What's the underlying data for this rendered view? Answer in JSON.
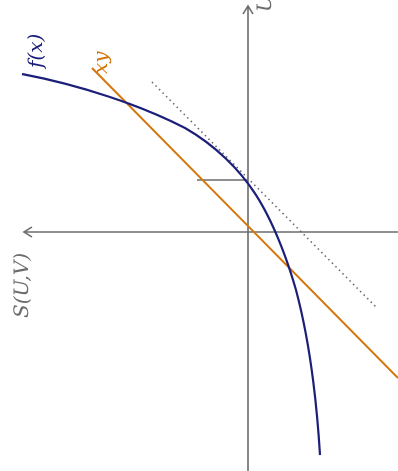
{
  "labels": {
    "f_curve": "f(x)",
    "line_xy": "xy",
    "axis_top": "U",
    "axis_left": "S(U,V)"
  },
  "colors": {
    "curve": "#1b1f7a",
    "line": "#d4760c",
    "axis": "#6b6b6b",
    "tangent": "#6b6b6b",
    "background": "#ffffff"
  }
}
